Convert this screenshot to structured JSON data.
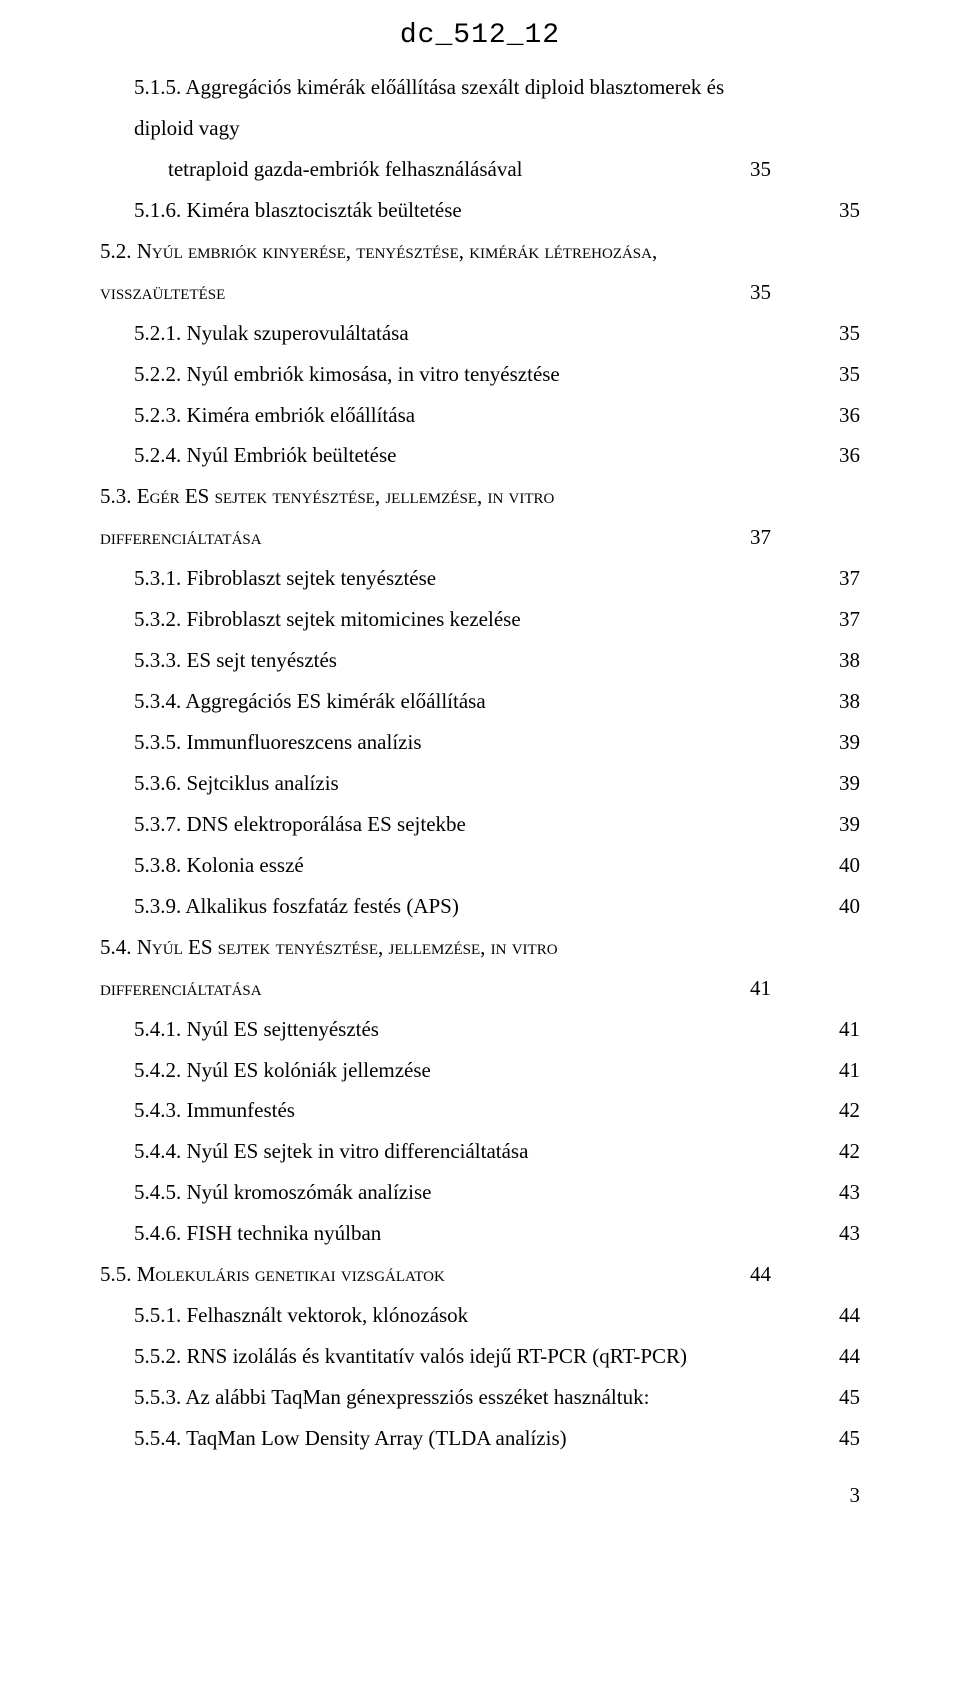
{
  "header": "dc_512_12",
  "lines": [
    {
      "indent": 1,
      "label_a": "5.1.5. Aggregációs kimérák előállítása szexált diploid blasztomerek és diploid vagy",
      "wrap_label": "tetraploid gazda-embriók felhasználásával",
      "wrap_page": "35",
      "page_align": "right"
    },
    {
      "indent": 1,
      "label_a": "5.1.6. Kiméra blasztociszták beültetése",
      "page_a": "35",
      "page_align": "right"
    },
    {
      "indent": 0,
      "smallcaps": true,
      "label_a": "5.2. Nyúl embriók kinyerése, tenyésztése, kimérák létrehozása,",
      "wrap_smallcaps": true,
      "wrap_label_no_indent": "visszaültetése",
      "wrap_page": "35",
      "wrap_page_align": "left"
    },
    {
      "indent": 1,
      "label_a": "5.2.1. Nyulak szuperovuláltatása",
      "page_a": "35",
      "page_align": "right"
    },
    {
      "indent": 1,
      "label_a": "5.2.2. Nyúl embriók kimosása, in vitro tenyésztése",
      "page_a": "35",
      "page_align": "right"
    },
    {
      "indent": 1,
      "label_a": "5.2.3. Kiméra embriók előállítása",
      "page_a": "36",
      "page_align": "right"
    },
    {
      "indent": 1,
      "label_a": "5.2.4. Nyúl Embriók beültetése",
      "page_a": "36",
      "page_align": "right"
    },
    {
      "indent": 0,
      "smallcaps": true,
      "label_a": "5.3. Egér ES sejtek tenyésztése, jellemzése, in vitro",
      "wrap_smallcaps": true,
      "wrap_label_no_indent": "differenciáltatása",
      "wrap_page": "37",
      "wrap_page_align": "left"
    },
    {
      "indent": 1,
      "label_a": "5.3.1. Fibroblaszt sejtek tenyésztése",
      "page_a": "37",
      "page_align": "right"
    },
    {
      "indent": 1,
      "label_a": "5.3.2. Fibroblaszt sejtek mitomicines kezelése",
      "page_a": "37",
      "page_align": "right"
    },
    {
      "indent": 1,
      "label_a": "5.3.3. ES sejt tenyésztés",
      "page_a": "38",
      "page_align": "right"
    },
    {
      "indent": 1,
      "label_a": "5.3.4. Aggregációs ES kimérák előállítása",
      "page_a": "38",
      "page_align": "right"
    },
    {
      "indent": 1,
      "label_a": "5.3.5. Immunfluoreszcens analízis",
      "page_a": "39",
      "page_align": "right"
    },
    {
      "indent": 1,
      "label_a": "5.3.6. Sejtciklus analízis",
      "page_a": "39",
      "page_align": "right"
    },
    {
      "indent": 1,
      "label_a": "5.3.7. DNS elektroporálása ES sejtekbe",
      "page_a": "39",
      "page_align": "right"
    },
    {
      "indent": 1,
      "label_a": "5.3.8. Kolonia esszé",
      "page_a": "40",
      "page_align": "right"
    },
    {
      "indent": 1,
      "label_a": "5.3.9. Alkalikus foszfatáz festés (APS)",
      "page_a": "40",
      "page_align": "right"
    },
    {
      "indent": 0,
      "smallcaps": true,
      "label_a": "5.4. Nyúl ES sejtek tenyésztése, jellemzése, in vitro",
      "wrap_smallcaps": true,
      "wrap_label_no_indent": "differenciáltatása",
      "wrap_page": "41",
      "wrap_page_align": "left"
    },
    {
      "indent": 1,
      "label_a": "5.4.1. Nyúl ES sejttenyésztés",
      "page_a": "41",
      "page_align": "right"
    },
    {
      "indent": 1,
      "label_a": "5.4.2. Nyúl ES kolóniák jellemzése",
      "page_a": "41",
      "page_align": "right"
    },
    {
      "indent": 1,
      "label_a": "5.4.3. Immunfestés",
      "page_a": "42",
      "page_align": "right"
    },
    {
      "indent": 1,
      "label_a": "5.4.4. Nyúl ES sejtek in vitro differenciáltatása",
      "page_a": "42",
      "page_align": "right"
    },
    {
      "indent": 1,
      "label_a": "5.4.5. Nyúl kromoszómák analízise",
      "page_a": "43",
      "page_align": "right"
    },
    {
      "indent": 1,
      "label_a": "5.4.6. FISH technika nyúlban",
      "page_a": "43",
      "page_align": "right"
    },
    {
      "indent": 0,
      "smallcaps": true,
      "label_a": "5.5. Molekuláris genetikai vizsgálatok",
      "page_a": "44",
      "page_align": "left"
    },
    {
      "indent": 1,
      "label_a": "5.5.1. Felhasznált vektorok, klónozások",
      "page_a": "44",
      "page_align": "right"
    },
    {
      "indent": 1,
      "label_a": "5.5.2. RNS izolálás és kvantitatív valós idejű RT-PCR (qRT-PCR)",
      "page_a": "44",
      "page_align": "right"
    },
    {
      "indent": 1,
      "label_a": "5.5.3. Az alábbi TaqMan génexpressziós esszéket használtuk:",
      "page_a": "45",
      "page_align": "right"
    },
    {
      "indent": 1,
      "label_a": "5.5.4. TaqMan Low Density Array (TLDA analízis)",
      "page_a": "45",
      "page_align": "right"
    }
  ],
  "page_number": "3"
}
